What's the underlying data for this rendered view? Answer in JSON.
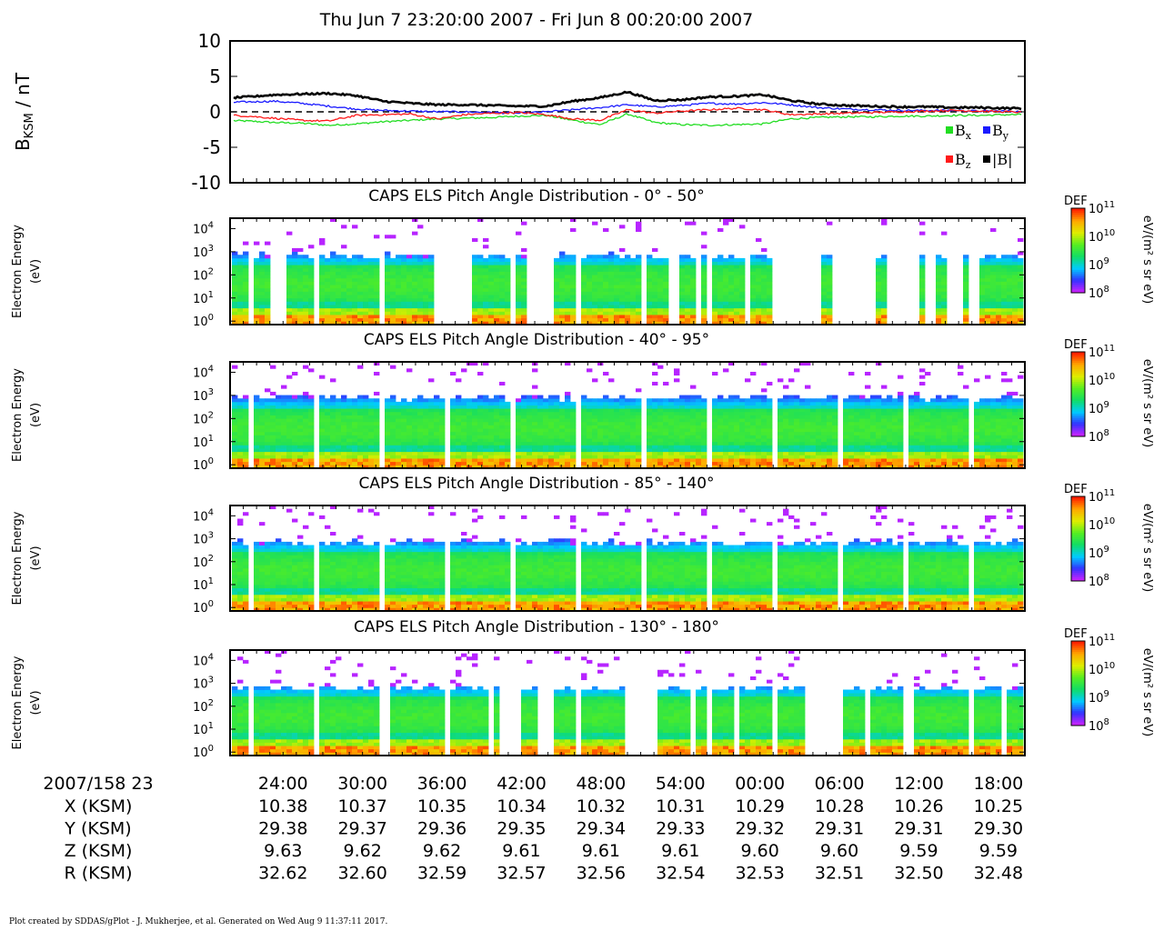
{
  "page": {
    "title": "Thu Jun 7 23:20:00 2007 - Fri Jun 8 00:20:00 2007",
    "footer": "Plot created by SDDAS/gPlot - J. Mukherjee, et al.  Generated on Wed Aug 9 11:37:11 2017."
  },
  "colors": {
    "bx": "#22dd22",
    "by": "#1a1aff",
    "bz": "#ff1a1a",
    "btot": "#000000",
    "colormap": [
      "#cc22ff",
      "#3333ff",
      "#00ccff",
      "#11dd66",
      "#55ee22",
      "#ddee00",
      "#ffaa00",
      "#ff2200"
    ]
  },
  "chart_data": [
    {
      "type": "line",
      "ylabel_main": "B",
      "ylabel_sub": "KSM",
      "ylabel_unit": " / nT",
      "ylim": [
        -10,
        10
      ],
      "yticks": [
        "10",
        "5",
        "0",
        "-5",
        "-10"
      ],
      "zero_line": "dashed",
      "legend": [
        {
          "swatch": "bx",
          "main": "B",
          "sub": "x"
        },
        {
          "swatch": "by",
          "main": "B",
          "sub": "y"
        },
        {
          "swatch": "bz",
          "main": "B",
          "sub": "z"
        },
        {
          "swatch": "btot",
          "main": "|B|",
          "sub": ""
        }
      ],
      "series": [
        {
          "key": "bx",
          "x_min": [
            0,
            2,
            4,
            6,
            8,
            10,
            12,
            14,
            16,
            18,
            20,
            22,
            24,
            26,
            28,
            30,
            32,
            34,
            36,
            38,
            40,
            42,
            44,
            46,
            48,
            50,
            52,
            54,
            56,
            58,
            60
          ],
          "values": [
            -1.2,
            -1.3,
            -1.5,
            -1.6,
            -1.9,
            -1.7,
            -1.4,
            -1.2,
            -1.0,
            -0.9,
            -0.8,
            -0.6,
            -0.5,
            -1.2,
            -1.8,
            -0.3,
            -1.5,
            -1.8,
            -1.9,
            -1.8,
            -1.7,
            -1.0,
            -0.8,
            -0.7,
            -0.7,
            -0.6,
            -0.6,
            -0.5,
            -0.5,
            -0.4,
            -0.4
          ]
        },
        {
          "key": "by",
          "x_min": [
            0,
            2,
            4,
            6,
            8,
            10,
            12,
            14,
            16,
            18,
            20,
            22,
            24,
            26,
            28,
            30,
            32,
            34,
            36,
            38,
            40,
            42,
            44,
            46,
            48,
            50,
            52,
            54,
            56,
            58,
            60
          ],
          "values": [
            1.3,
            1.4,
            1.5,
            1.2,
            0.8,
            0.4,
            0.2,
            0.1,
            0.0,
            0.0,
            -0.1,
            -0.2,
            0.0,
            0.3,
            0.6,
            1.0,
            0.7,
            0.9,
            1.2,
            1.1,
            1.3,
            1.0,
            0.6,
            0.4,
            0.3,
            0.2,
            0.2,
            0.2,
            0.1,
            0.1,
            0.0
          ]
        },
        {
          "key": "bz",
          "x_min": [
            0,
            2,
            4,
            6,
            8,
            10,
            12,
            14,
            16,
            18,
            20,
            22,
            24,
            26,
            28,
            30,
            32,
            34,
            36,
            38,
            40,
            42,
            44,
            46,
            48,
            50,
            52,
            54,
            56,
            58,
            60
          ],
          "values": [
            -0.4,
            -0.6,
            -0.9,
            -1.2,
            -1.3,
            -0.5,
            -0.4,
            -0.3,
            -1.0,
            -0.4,
            -0.2,
            -0.1,
            -0.4,
            -1.0,
            -1.2,
            0.3,
            -0.2,
            0.1,
            0.3,
            0.5,
            0.3,
            -0.4,
            -0.3,
            -0.2,
            -0.1,
            0.0,
            0.1,
            0.2,
            0.1,
            0.0,
            -0.1
          ]
        },
        {
          "key": "btot",
          "x_min": [
            0,
            2,
            4,
            6,
            8,
            10,
            12,
            14,
            16,
            18,
            20,
            22,
            24,
            26,
            28,
            30,
            32,
            34,
            36,
            38,
            40,
            42,
            44,
            46,
            48,
            50,
            52,
            54,
            56,
            58,
            60
          ],
          "values": [
            1.9,
            2.1,
            2.4,
            2.5,
            2.6,
            2.3,
            1.5,
            1.2,
            1.0,
            1.0,
            0.9,
            0.8,
            0.8,
            1.5,
            2.0,
            2.8,
            1.6,
            1.7,
            2.1,
            2.2,
            2.4,
            1.6,
            1.1,
            0.9,
            0.8,
            0.7,
            0.7,
            0.6,
            0.6,
            0.5,
            0.5
          ]
        }
      ]
    },
    {
      "type": "heatmap",
      "title": "CAPS ELS Pitch Angle Distribution - 0° - 50°",
      "ylabel": [
        "Electron Energy",
        "(eV)"
      ],
      "y_scale": "log",
      "yticks_exp": [
        "4",
        "3",
        "2",
        "1",
        "0"
      ],
      "colorbar": {
        "label": "DEF",
        "unit": "eV/(m² s sr eV)",
        "ticks_exp": [
          "11",
          "10",
          "9",
          "8"
        ]
      },
      "x_range_min": [
        0,
        60
      ],
      "data_gaps_min": [
        [
          3.0,
          4.0
        ],
        [
          15.5,
          18.2
        ],
        [
          22.5,
          23.0
        ],
        [
          23.3,
          23.8
        ],
        [
          24.0,
          24.6
        ],
        [
          33.2,
          33.8
        ],
        [
          35.2,
          35.6
        ],
        [
          38.8,
          39.5
        ],
        [
          40.8,
          44.8
        ],
        [
          45.5,
          48.8
        ],
        [
          49.5,
          50.8
        ],
        [
          51.2,
          52.0
        ],
        [
          52.4,
          53.2
        ],
        [
          54.2,
          55.0
        ],
        [
          55.2,
          55.6
        ],
        [
          56.2,
          56.5
        ]
      ],
      "core_energy_eV": [
        5,
        300
      ],
      "cutoff_energy_eV": 700
    },
    {
      "type": "heatmap",
      "title": "CAPS ELS Pitch Angle Distribution - 40° - 95°",
      "ylabel": [
        "Electron Energy",
        "(eV)"
      ],
      "y_scale": "log",
      "yticks_exp": [
        "4",
        "3",
        "2",
        "1",
        "0"
      ],
      "colorbar": {
        "label": "DEF",
        "unit": "eV/(m² s sr eV)",
        "ticks_exp": [
          "11",
          "10",
          "9",
          "8"
        ]
      },
      "x_range_min": [
        0,
        60
      ],
      "data_gaps_min": [],
      "core_energy_eV": [
        5,
        300
      ],
      "cutoff_energy_eV": 800
    },
    {
      "type": "heatmap",
      "title": "CAPS ELS Pitch Angle Distribution - 85° - 140°",
      "ylabel": [
        "Electron Energy",
        "(eV)"
      ],
      "y_scale": "log",
      "yticks_exp": [
        "4",
        "3",
        "2",
        "1",
        "0"
      ],
      "colorbar": {
        "label": "DEF",
        "unit": "eV/(m² s sr eV)",
        "ticks_exp": [
          "11",
          "10",
          "9",
          "8"
        ]
      },
      "x_range_min": [
        0,
        60
      ],
      "data_gaps_min": [],
      "core_energy_eV": [
        5,
        300
      ],
      "cutoff_energy_eV": 700
    },
    {
      "type": "heatmap",
      "title": "CAPS ELS Pitch Angle Distribution - 130° - 180°",
      "ylabel": [
        "Electron Energy",
        "(eV)"
      ],
      "y_scale": "log",
      "yticks_exp": [
        "4",
        "3",
        "2",
        "1",
        "0"
      ],
      "colorbar": {
        "label": "DEF",
        "unit": "eV/(m² s sr eV)",
        "ticks_exp": [
          "11",
          "10",
          "9",
          "8"
        ]
      },
      "x_range_min": [
        0,
        60
      ],
      "data_gaps_min": [
        [
          11.5,
          12.0
        ],
        [
          19.5,
          20.0
        ],
        [
          20.2,
          21.8
        ],
        [
          23.0,
          24.5
        ],
        [
          30.0,
          31.8
        ],
        [
          31.8,
          32.2
        ],
        [
          34.8,
          35.2
        ],
        [
          38.2,
          38.6
        ],
        [
          43.5,
          45.0
        ],
        [
          45.0,
          46.4
        ],
        [
          47.0,
          47.3
        ],
        [
          48.2,
          48.6
        ],
        [
          50.8,
          51.2
        ],
        [
          51.4,
          51.6
        ],
        [
          52.0,
          52.3
        ],
        [
          58.3,
          58.8
        ]
      ],
      "core_energy_eV": [
        5,
        300
      ],
      "cutoff_energy_eV": 600
    }
  ],
  "x_axis": {
    "start_label": "2007/158 23",
    "tick_minutes": [
      4,
      10,
      16,
      22,
      28,
      34,
      40,
      46,
      52,
      58
    ],
    "tick_labels": [
      "24:00",
      "30:00",
      "36:00",
      "42:00",
      "48:00",
      "54:00",
      "00:00",
      "06:00",
      "12:00",
      "18:00"
    ]
  },
  "ephemeris": [
    {
      "label": "X (KSM)",
      "values": [
        "10.38",
        "10.37",
        "10.35",
        "10.34",
        "10.32",
        "10.31",
        "10.29",
        "10.28",
        "10.26",
        "10.25"
      ]
    },
    {
      "label": "Y (KSM)",
      "values": [
        "29.38",
        "29.37",
        "29.36",
        "29.35",
        "29.34",
        "29.33",
        "29.32",
        "29.31",
        "29.31",
        "29.30"
      ]
    },
    {
      "label": "Z (KSM)",
      "values": [
        "9.63",
        "9.62",
        "9.62",
        "9.61",
        "9.61",
        "9.61",
        "9.60",
        "9.60",
        "9.59",
        "9.59"
      ]
    },
    {
      "label": "R (KSM)",
      "values": [
        "32.62",
        "32.60",
        "32.59",
        "32.57",
        "32.56",
        "32.54",
        "32.53",
        "32.51",
        "32.50",
        "32.48"
      ]
    }
  ]
}
